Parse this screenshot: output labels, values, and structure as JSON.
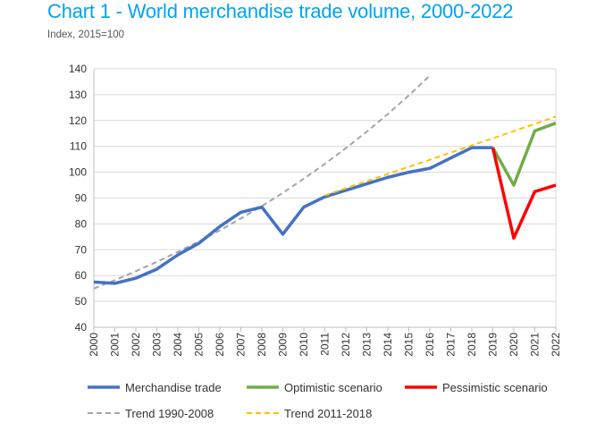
{
  "chart_data": {
    "type": "line",
    "title": "Chart 1 - World merchandise trade volume, 2000-2022",
    "subtitle": "Index, 2015=100",
    "xlabel": "",
    "ylabel": "",
    "ylim": [
      40,
      140
    ],
    "yticks": [
      40,
      50,
      60,
      70,
      80,
      90,
      100,
      110,
      120,
      130,
      140
    ],
    "x": [
      2000,
      2001,
      2002,
      2003,
      2004,
      2005,
      2006,
      2007,
      2008,
      2009,
      2010,
      2011,
      2012,
      2013,
      2014,
      2015,
      2016,
      2017,
      2018,
      2019,
      2020,
      2021,
      2022
    ],
    "grid": true,
    "legend_position": "bottom",
    "series": [
      {
        "name": "Merchandise trade",
        "color": "#4472C4",
        "dash": false,
        "x": [
          2000,
          2001,
          2002,
          2003,
          2004,
          2005,
          2006,
          2007,
          2008,
          2009,
          2010,
          2011,
          2012,
          2013,
          2014,
          2015,
          2016,
          2017,
          2018,
          2019
        ],
        "values": [
          57.5,
          57,
          59,
          62.5,
          68,
          72.5,
          79,
          84.5,
          86.5,
          76,
          86.5,
          90.5,
          93,
          95.5,
          98,
          100,
          101.5,
          105.5,
          109.5,
          109.5
        ]
      },
      {
        "name": "Optimistic scenario",
        "color": "#70AD47",
        "dash": false,
        "x": [
          2019,
          2020,
          2021,
          2022
        ],
        "values": [
          109.5,
          95,
          116,
          119
        ]
      },
      {
        "name": "Pessimistic scenario",
        "color": "#FF0000",
        "dash": false,
        "x": [
          2019,
          2020,
          2021,
          2022
        ],
        "values": [
          109.5,
          74.5,
          92.5,
          95
        ]
      },
      {
        "name": "Trend 1990-2008",
        "color": "#A5A5A5",
        "dash": true,
        "x": [
          2000,
          2001,
          2002,
          2003,
          2004,
          2005,
          2006,
          2007,
          2008,
          2009,
          2010,
          2011,
          2012,
          2013,
          2014,
          2015,
          2016
        ],
        "values": [
          55,
          58.2,
          61.7,
          65.3,
          69.2,
          73.2,
          77.5,
          82.1,
          86.9,
          92,
          97.5,
          103.2,
          109.3,
          115.7,
          122.5,
          129.7,
          137.4
        ]
      },
      {
        "name": "Trend 2011-2018",
        "color": "#FFC000",
        "dash": true,
        "x": [
          2011,
          2012,
          2013,
          2014,
          2015,
          2016,
          2017,
          2018,
          2019,
          2020,
          2021,
          2022
        ],
        "values": [
          91,
          93.8,
          96.5,
          99.3,
          102.1,
          104.8,
          107.6,
          110.4,
          113.1,
          115.9,
          118.7,
          121.5
        ]
      }
    ]
  }
}
